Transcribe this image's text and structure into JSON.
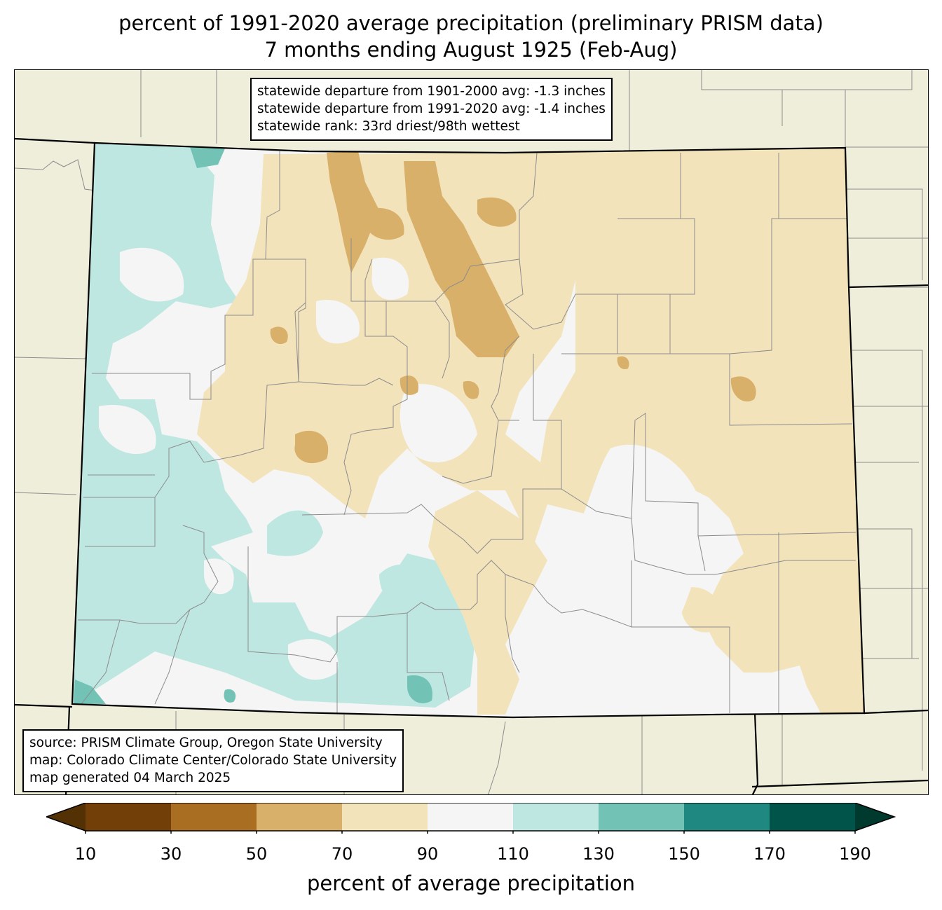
{
  "title": {
    "line1": "percent of 1991-2020 average precipitation (preliminary PRISM data)",
    "line2": "7 months ending August 1925 (Feb-Aug)"
  },
  "stats": {
    "line1": "statewide departure from 1901-2000 avg: -1.3 inches",
    "line2": "statewide departure from 1991-2020 avg: -1.4 inches",
    "line3": "statewide rank: 33rd driest/98th wettest"
  },
  "source": {
    "line1": "source: PRISM Climate Group, Oregon State University",
    "line2": "map: Colorado Climate Center/Colorado State University",
    "line3": "map generated 04 March 2025"
  },
  "colors": {
    "surrounding_land": "#efeedb",
    "lt_10": "#543005",
    "b10_30": "#733f08",
    "b30_50": "#a96e22",
    "b50_70": "#d8b06a",
    "b70_90": "#f3e3bb",
    "b90_110": "#f4f5f4",
    "b110_130": "#bfe7e2",
    "b130_150": "#72c3b5",
    "b150_170": "#1f8881",
    "b170_190": "#01544a",
    "gt_190": "#003a2e"
  },
  "colorbar": {
    "ticks": [
      "10",
      "30",
      "50",
      "70",
      "90",
      "110",
      "130",
      "150",
      "170",
      "190"
    ],
    "label": "percent of average precipitation"
  }
}
